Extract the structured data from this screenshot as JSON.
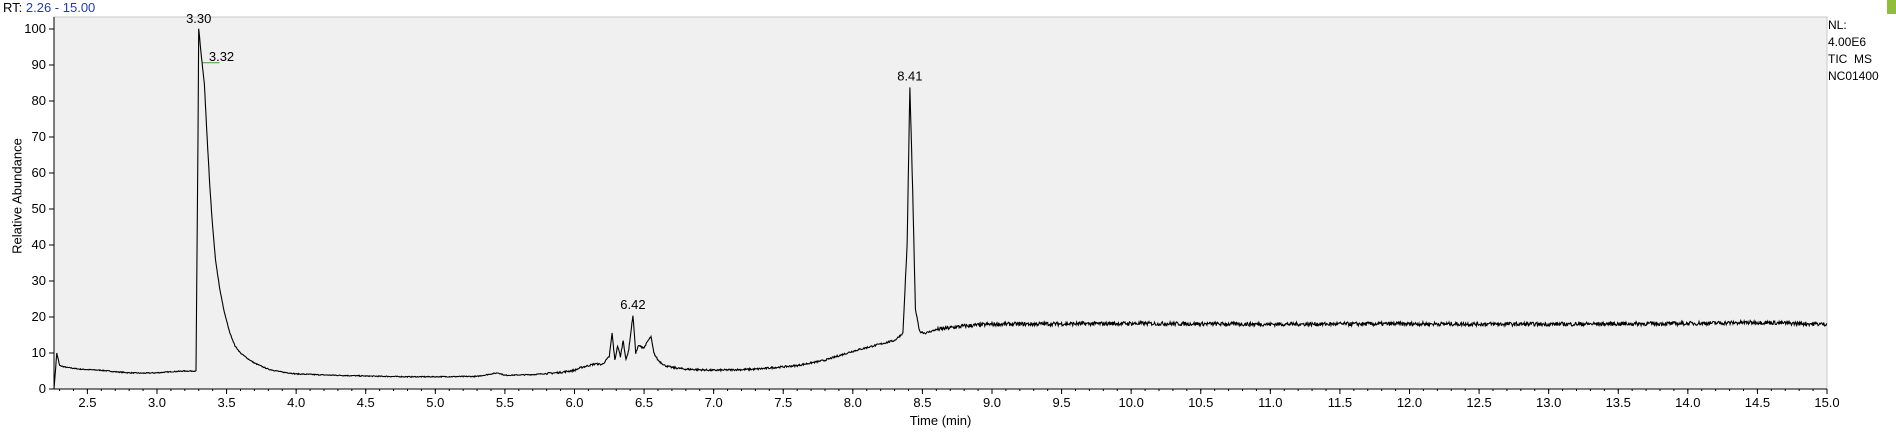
{
  "header": {
    "rt_prefix": "RT:",
    "rt_range": "2.26 - 15.00"
  },
  "side_info": {
    "nl_label": "NL:",
    "nl_value": "4.00E6",
    "scan_type": "TIC  MS",
    "sample": "NC01400"
  },
  "colors": {
    "plot_background": "#f0f0f0",
    "trace": "#000000",
    "rt_range_text": "#1f3fa8",
    "corner_mark": "#8fbf3a"
  },
  "chart_data": {
    "type": "line",
    "xlabel": "Time (min)",
    "ylabel": "Relative Abundance",
    "xlim": [
      2.26,
      15.0
    ],
    "ylim": [
      0,
      100
    ],
    "grid": false,
    "x_ticks": [
      2.5,
      3.0,
      3.5,
      4.0,
      4.5,
      5.0,
      5.5,
      6.0,
      6.5,
      7.0,
      7.5,
      8.0,
      8.5,
      9.0,
      9.5,
      10.0,
      10.5,
      11.0,
      11.5,
      12.0,
      12.5,
      13.0,
      13.5,
      14.0,
      14.5,
      15.0
    ],
    "x_tick_labels": [
      "2.5",
      "3.0",
      "3.5",
      "4.0",
      "4.5",
      "5.0",
      "5.5",
      "6.0",
      "6.5",
      "7.0",
      "7.5",
      "8.0",
      "8.5",
      "9.0",
      "9.5",
      "10.0",
      "10.5",
      "11.0",
      "11.5",
      "12.0",
      "12.5",
      "13.0",
      "13.5",
      "14.0",
      "14.5",
      "15.0"
    ],
    "y_ticks": [
      0,
      10,
      20,
      30,
      40,
      50,
      60,
      70,
      80,
      90,
      100
    ],
    "y_tick_labels": [
      "0",
      "10",
      "20",
      "30",
      "40",
      "50",
      "60",
      "70",
      "80",
      "90",
      "100"
    ],
    "peak_labels": [
      {
        "rt": 3.3,
        "abundance": 100,
        "text": "3.30"
      },
      {
        "rt": 3.32,
        "abundance": 92,
        "text": "3.32"
      },
      {
        "rt": 6.42,
        "abundance": 20.5,
        "text": "6.42"
      },
      {
        "rt": 8.41,
        "abundance": 84,
        "text": "8.41"
      }
    ],
    "series": [
      {
        "x": [
          2.26,
          2.28,
          2.3,
          2.35,
          2.45,
          2.6,
          2.7,
          2.8,
          2.9,
          3.0,
          3.1,
          3.2,
          3.28,
          3.295,
          3.3,
          3.31,
          3.32,
          3.34,
          3.36,
          3.38,
          3.4,
          3.42,
          3.45,
          3.48,
          3.52,
          3.56,
          3.6,
          3.65,
          3.7,
          3.8,
          3.9,
          4.0,
          4.2,
          4.5,
          4.8,
          5.0,
          5.3,
          5.45,
          5.5,
          5.7,
          5.9,
          6.0,
          6.05,
          6.1,
          6.15,
          6.2,
          6.25,
          6.27,
          6.29,
          6.31,
          6.33,
          6.35,
          6.37,
          6.39,
          6.42,
          6.44,
          6.46,
          6.5,
          6.53,
          6.55,
          6.57,
          6.6,
          6.65,
          6.7,
          6.8,
          7.0,
          7.3,
          7.6,
          7.8,
          8.0,
          8.2,
          8.3,
          8.36,
          8.39,
          8.41,
          8.43,
          8.45,
          8.48,
          8.52,
          8.6,
          8.8,
          9.0,
          10.0,
          11.0,
          12.0,
          13.0,
          14.0,
          14.5,
          15.0
        ],
        "y": [
          0,
          10,
          6.5,
          6.0,
          5.5,
          5.2,
          4.8,
          4.5,
          4.4,
          4.5,
          4.8,
          5.0,
          5.0,
          70,
          100,
          96,
          92,
          85,
          70,
          56,
          45,
          36,
          28,
          22,
          16,
          12,
          10,
          8.5,
          7.2,
          5.5,
          4.7,
          4.2,
          3.9,
          3.6,
          3.4,
          3.4,
          3.5,
          4.5,
          3.8,
          4.0,
          4.6,
          5.2,
          6.0,
          6.5,
          7.0,
          6.8,
          9.0,
          15.5,
          8.0,
          12.0,
          9.0,
          13.5,
          8.0,
          11.0,
          20.5,
          10.0,
          12.0,
          11.5,
          13.5,
          14.5,
          10.0,
          8.0,
          6.5,
          6.0,
          5.5,
          5.2,
          5.5,
          6.5,
          8.0,
          10.5,
          12.5,
          13.5,
          15.5,
          40,
          84,
          55,
          22,
          16,
          15.5,
          16.5,
          17.5,
          18.0,
          18.2,
          18.0,
          18.1,
          18.0,
          18.2,
          18.5,
          18.0
        ]
      }
    ]
  }
}
